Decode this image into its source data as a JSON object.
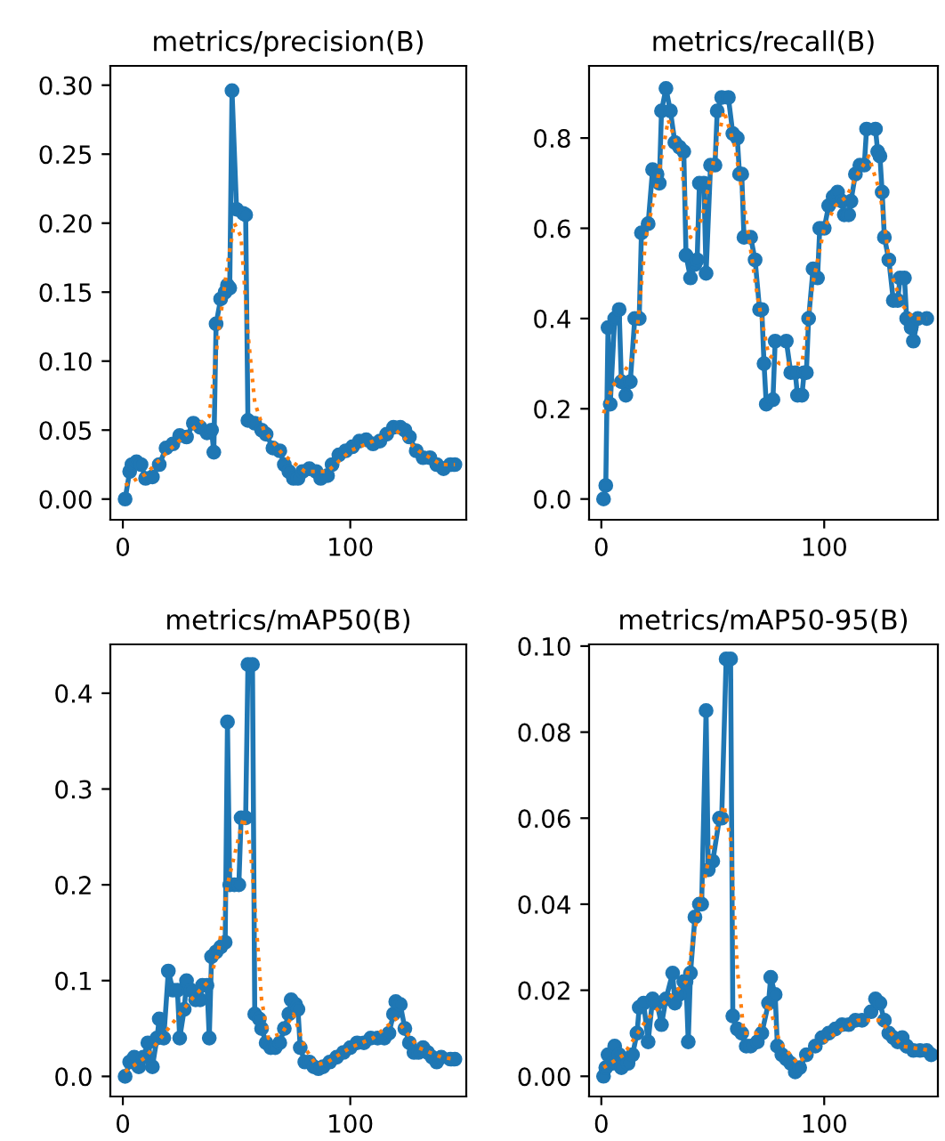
{
  "chart_data": [
    {
      "type": "line",
      "title": "metrics/precision(B)",
      "xlim": [
        -5.5,
        151
      ],
      "ylim": [
        -0.015,
        0.314
      ],
      "xticks": [
        0,
        100
      ],
      "yticks": [
        {
          "value": 0,
          "label": "0.00"
        },
        {
          "value": 0.05,
          "label": "0.05"
        },
        {
          "value": 0.1,
          "label": "0.10"
        },
        {
          "value": 0.15,
          "label": "0.15"
        },
        {
          "value": 0.2,
          "label": "0.20"
        },
        {
          "value": 0.25,
          "label": "0.25"
        },
        {
          "value": 0.3,
          "label": "0.30"
        }
      ],
      "series": [
        {
          "color": "#1f77b4",
          "marker": "circle",
          "line_style": "solid",
          "x": [
            1,
            3,
            4,
            6,
            8,
            10,
            13,
            16,
            19,
            22,
            25,
            28,
            31,
            34,
            37,
            39,
            40,
            41,
            43,
            45,
            46,
            47,
            48,
            50,
            53,
            54,
            55,
            58,
            61,
            63,
            66,
            69,
            71,
            73,
            75,
            77,
            79,
            82,
            85,
            87,
            90,
            92,
            95,
            98,
            101,
            104,
            107,
            110,
            113,
            116,
            119,
            122,
            124,
            126,
            129,
            132,
            135,
            138,
            141,
            144,
            146
          ],
          "values": [
            0.0,
            0.02,
            0.025,
            0.027,
            0.025,
            0.015,
            0.016,
            0.025,
            0.037,
            0.04,
            0.046,
            0.045,
            0.055,
            0.052,
            0.048,
            0.05,
            0.034,
            0.127,
            0.145,
            0.15,
            0.155,
            0.153,
            0.296,
            0.21,
            0.207,
            0.206,
            0.057,
            0.055,
            0.05,
            0.047,
            0.037,
            0.035,
            0.025,
            0.02,
            0.015,
            0.015,
            0.02,
            0.022,
            0.02,
            0.015,
            0.017,
            0.025,
            0.032,
            0.035,
            0.038,
            0.042,
            0.043,
            0.04,
            0.042,
            0.047,
            0.052,
            0.052,
            0.05,
            0.045,
            0.035,
            0.03,
            0.03,
            0.025,
            0.022,
            0.025,
            0.025
          ]
        },
        {
          "color": "#ff7f0e",
          "marker": "none",
          "line_style": "dotted",
          "x": [
            1,
            10,
            20,
            30,
            38,
            42,
            46,
            49,
            52,
            55,
            58,
            62,
            70,
            80,
            90,
            100,
            110,
            120,
            130,
            140,
            146
          ],
          "values": [
            0.01,
            0.018,
            0.035,
            0.05,
            0.06,
            0.12,
            0.17,
            0.2,
            0.19,
            0.12,
            0.07,
            0.05,
            0.033,
            0.02,
            0.02,
            0.035,
            0.042,
            0.05,
            0.035,
            0.025,
            0.025
          ]
        }
      ]
    },
    {
      "type": "line",
      "title": "metrics/recall(B)",
      "xlim": [
        -5.5,
        151
      ],
      "ylim": [
        -0.046,
        0.96
      ],
      "xticks": [
        0,
        100
      ],
      "yticks": [
        {
          "value": 0,
          "label": "0.0"
        },
        {
          "value": 0.2,
          "label": "0.2"
        },
        {
          "value": 0.4,
          "label": "0.4"
        },
        {
          "value": 0.6,
          "label": "0.6"
        },
        {
          "value": 0.8,
          "label": "0.8"
        }
      ],
      "series": [
        {
          "color": "#1f77b4",
          "marker": "circle",
          "line_style": "solid",
          "x": [
            1,
            2,
            3,
            4,
            6,
            8,
            9,
            11,
            13,
            15,
            17,
            18,
            21,
            23,
            25,
            26,
            27,
            29,
            31,
            33,
            35,
            37,
            38,
            40,
            42,
            43,
            44,
            46,
            47,
            49,
            51,
            52,
            54,
            57,
            59,
            61,
            62,
            63,
            64,
            67,
            69,
            71,
            72,
            73,
            74,
            77,
            78,
            83,
            85,
            87,
            88,
            90,
            91,
            92,
            93,
            95,
            97,
            98,
            100,
            102,
            104,
            106,
            108,
            109,
            111,
            112,
            114,
            116,
            118,
            119,
            123,
            124,
            125,
            126,
            127,
            129,
            131,
            133,
            134,
            136,
            137,
            139,
            140,
            142,
            146
          ],
          "values": [
            0.0,
            0.03,
            0.38,
            0.21,
            0.4,
            0.42,
            0.26,
            0.23,
            0.26,
            0.4,
            0.4,
            0.59,
            0.61,
            0.73,
            0.72,
            0.7,
            0.86,
            0.91,
            0.86,
            0.79,
            0.78,
            0.77,
            0.54,
            0.49,
            0.52,
            0.53,
            0.7,
            0.7,
            0.5,
            0.74,
            0.74,
            0.86,
            0.89,
            0.89,
            0.81,
            0.8,
            0.72,
            0.72,
            0.58,
            0.58,
            0.53,
            0.42,
            0.42,
            0.3,
            0.21,
            0.22,
            0.35,
            0.35,
            0.28,
            0.28,
            0.23,
            0.23,
            0.28,
            0.28,
            0.4,
            0.51,
            0.49,
            0.6,
            0.6,
            0.65,
            0.67,
            0.68,
            0.66,
            0.63,
            0.63,
            0.66,
            0.72,
            0.74,
            0.74,
            0.82,
            0.82,
            0.77,
            0.76,
            0.68,
            0.58,
            0.53,
            0.44,
            0.44,
            0.49,
            0.49,
            0.4,
            0.38,
            0.35,
            0.4,
            0.4
          ]
        },
        {
          "color": "#ff7f0e",
          "marker": "none",
          "line_style": "dotted",
          "x": [
            1,
            5,
            10,
            15,
            20,
            25,
            30,
            35,
            40,
            45,
            50,
            55,
            60,
            65,
            70,
            75,
            80,
            85,
            90,
            95,
            100,
            105,
            110,
            115,
            120,
            125,
            130,
            135,
            140,
            146
          ],
          "values": [
            0.19,
            0.25,
            0.28,
            0.32,
            0.58,
            0.7,
            0.84,
            0.77,
            0.58,
            0.62,
            0.74,
            0.86,
            0.78,
            0.62,
            0.45,
            0.32,
            0.3,
            0.3,
            0.3,
            0.48,
            0.6,
            0.65,
            0.67,
            0.72,
            0.76,
            0.68,
            0.5,
            0.43,
            0.4,
            0.4
          ]
        }
      ]
    },
    {
      "type": "line",
      "title": "metrics/mAP50(B)",
      "xlim": [
        -5.5,
        151
      ],
      "ylim": [
        -0.021,
        0.451
      ],
      "xticks": [
        0,
        100
      ],
      "yticks": [
        {
          "value": 0,
          "label": "0.0"
        },
        {
          "value": 0.1,
          "label": "0.1"
        },
        {
          "value": 0.2,
          "label": "0.2"
        },
        {
          "value": 0.3,
          "label": "0.3"
        },
        {
          "value": 0.4,
          "label": "0.4"
        }
      ],
      "series": [
        {
          "color": "#1f77b4",
          "marker": "circle",
          "line_style": "solid",
          "x": [
            1,
            3,
            5,
            7,
            9,
            11,
            13,
            15,
            16,
            18,
            20,
            22,
            24,
            25,
            27,
            28,
            30,
            32,
            34,
            35,
            37,
            38,
            39,
            41,
            43,
            45,
            46,
            47,
            49,
            51,
            52,
            54,
            55,
            57,
            58,
            60,
            61,
            63,
            65,
            67,
            69,
            71,
            73,
            74,
            76,
            77,
            78,
            80,
            82,
            84,
            86,
            88,
            91,
            94,
            97,
            100,
            103,
            106,
            109,
            112,
            115,
            117,
            119,
            120,
            122,
            124,
            126,
            128,
            130,
            132,
            134,
            136,
            138,
            140,
            144,
            146
          ],
          "values": [
            0.0,
            0.015,
            0.02,
            0.01,
            0.02,
            0.035,
            0.01,
            0.04,
            0.06,
            0.04,
            0.11,
            0.09,
            0.09,
            0.04,
            0.07,
            0.1,
            0.09,
            0.08,
            0.08,
            0.095,
            0.095,
            0.04,
            0.125,
            0.13,
            0.135,
            0.14,
            0.37,
            0.2,
            0.2,
            0.2,
            0.27,
            0.27,
            0.43,
            0.43,
            0.065,
            0.06,
            0.05,
            0.035,
            0.03,
            0.03,
            0.035,
            0.05,
            0.065,
            0.08,
            0.075,
            0.07,
            0.03,
            0.015,
            0.015,
            0.01,
            0.008,
            0.01,
            0.015,
            0.02,
            0.025,
            0.03,
            0.035,
            0.035,
            0.04,
            0.04,
            0.04,
            0.045,
            0.065,
            0.078,
            0.075,
            0.05,
            0.035,
            0.025,
            0.025,
            0.03,
            0.025,
            0.02,
            0.015,
            0.02,
            0.018,
            0.018
          ]
        },
        {
          "color": "#ff7f0e",
          "marker": "none",
          "line_style": "dotted",
          "x": [
            1,
            10,
            20,
            30,
            38,
            42,
            46,
            50,
            53,
            56,
            58,
            61,
            64,
            70,
            75,
            80,
            85,
            90,
            100,
            110,
            120,
            125,
            130,
            140,
            146
          ],
          "values": [
            0.005,
            0.02,
            0.05,
            0.08,
            0.1,
            0.13,
            0.2,
            0.24,
            0.27,
            0.24,
            0.18,
            0.08,
            0.04,
            0.045,
            0.065,
            0.03,
            0.012,
            0.015,
            0.03,
            0.04,
            0.06,
            0.045,
            0.03,
            0.02,
            0.018
          ]
        }
      ]
    },
    {
      "type": "line",
      "title": "metrics/mAP50-95(B)",
      "xlim": [
        -5.5,
        151
      ],
      "ylim": [
        -0.0047,
        0.1004
      ],
      "xticks": [
        0,
        100
      ],
      "yticks": [
        {
          "value": 0,
          "label": "0.00"
        },
        {
          "value": 0.02,
          "label": "0.02"
        },
        {
          "value": 0.04,
          "label": "0.04"
        },
        {
          "value": 0.06,
          "label": "0.06"
        },
        {
          "value": 0.08,
          "label": "0.08"
        },
        {
          "value": 0.1,
          "label": "0.10"
        }
      ],
      "series": [
        {
          "color": "#1f77b4",
          "marker": "circle",
          "line_style": "solid",
          "x": [
            1,
            2,
            3,
            5,
            6,
            8,
            9,
            12,
            14,
            16,
            17,
            19,
            21,
            23,
            25,
            27,
            29,
            32,
            33,
            35,
            37,
            38,
            39,
            40,
            42,
            44,
            45,
            47,
            48,
            50,
            53,
            54,
            56,
            58,
            59,
            61,
            63,
            65,
            67,
            70,
            72,
            75,
            76,
            78,
            79,
            81,
            83,
            85,
            87,
            89,
            92,
            96,
            99,
            102,
            105,
            108,
            111,
            114,
            117,
            121,
            123,
            125,
            127,
            129,
            131,
            133,
            135,
            137,
            140,
            143,
            146,
            148
          ],
          "values": [
            0.0,
            0.002,
            0.005,
            0.003,
            0.007,
            0.005,
            0.002,
            0.003,
            0.005,
            0.01,
            0.016,
            0.017,
            0.008,
            0.018,
            0.017,
            0.012,
            0.018,
            0.024,
            0.017,
            0.019,
            0.022,
            0.022,
            0.008,
            0.024,
            0.037,
            0.04,
            0.04,
            0.085,
            0.048,
            0.05,
            0.06,
            0.06,
            0.097,
            0.097,
            0.014,
            0.011,
            0.01,
            0.007,
            0.007,
            0.008,
            0.01,
            0.017,
            0.023,
            0.019,
            0.007,
            0.005,
            0.004,
            0.003,
            0.001,
            0.002,
            0.005,
            0.007,
            0.009,
            0.01,
            0.011,
            0.012,
            0.012,
            0.013,
            0.013,
            0.015,
            0.018,
            0.017,
            0.013,
            0.01,
            0.009,
            0.008,
            0.009,
            0.007,
            0.006,
            0.006,
            0.006,
            0.005
          ]
        },
        {
          "color": "#ff7f0e",
          "marker": "none",
          "line_style": "dotted",
          "x": [
            1,
            10,
            20,
            30,
            38,
            44,
            50,
            55,
            58,
            61,
            64,
            70,
            75,
            80,
            88,
            95,
            105,
            115,
            125,
            135,
            148
          ],
          "values": [
            0.002,
            0.005,
            0.013,
            0.018,
            0.022,
            0.04,
            0.055,
            0.063,
            0.055,
            0.025,
            0.01,
            0.01,
            0.017,
            0.008,
            0.003,
            0.006,
            0.01,
            0.013,
            0.013,
            0.007,
            0.006
          ]
        }
      ]
    }
  ]
}
